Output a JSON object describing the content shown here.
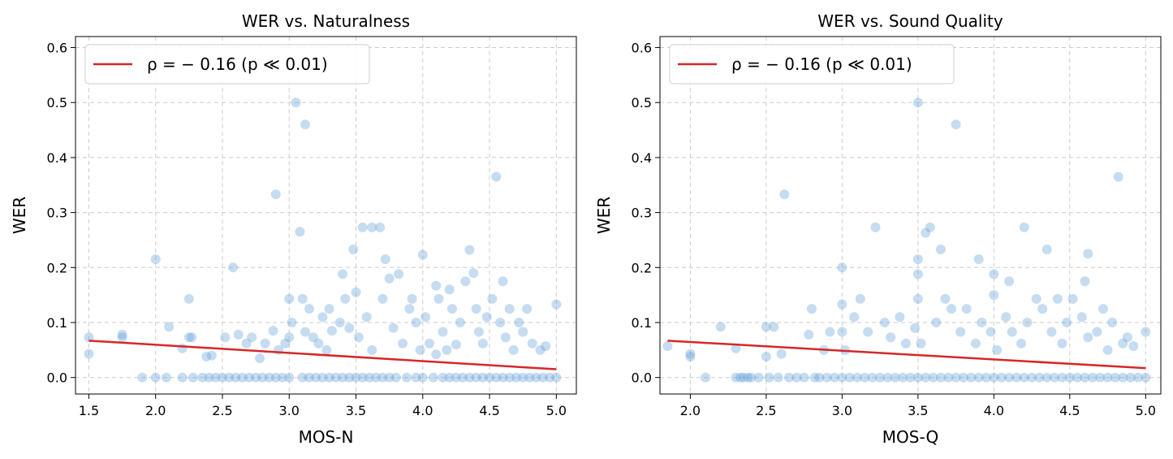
{
  "chart_data": [
    {
      "type": "scatter",
      "title": "WER vs. Naturalness",
      "xlabel": "MOS-N",
      "ylabel": "WER",
      "xlim": [
        1.4,
        5.15
      ],
      "ylim": [
        -0.03,
        0.62
      ],
      "xticks": [
        "1.5",
        "2.0",
        "2.5",
        "3.0",
        "3.5",
        "4.0",
        "4.5",
        "5.0"
      ],
      "yticks": [
        "0.0",
        "0.1",
        "0.2",
        "0.3",
        "0.4",
        "0.5",
        "0.6"
      ],
      "grid": true,
      "legend_position": "top-left",
      "point_color": "#5b9bd5",
      "line_color": "#d62728",
      "fit_line": {
        "label": "ρ = − 0.16 (p ≪ 0.01)",
        "x": [
          1.5,
          5.0
        ],
        "y": [
          0.067,
          0.015
        ]
      },
      "points": [
        [
          1.5,
          0.073
        ],
        [
          1.5,
          0.043
        ],
        [
          1.75,
          0.078
        ],
        [
          1.75,
          0.073
        ],
        [
          1.9,
          0.0
        ],
        [
          2.0,
          0.215
        ],
        [
          2.0,
          0.0
        ],
        [
          2.08,
          0.0
        ],
        [
          2.1,
          0.092
        ],
        [
          2.2,
          0.053
        ],
        [
          2.2,
          0.0
        ],
        [
          2.25,
          0.143
        ],
        [
          2.25,
          0.073
        ],
        [
          2.27,
          0.073
        ],
        [
          2.28,
          0.0
        ],
        [
          2.35,
          0.0
        ],
        [
          2.38,
          0.038
        ],
        [
          2.4,
          0.0
        ],
        [
          2.42,
          0.04
        ],
        [
          2.45,
          0.0
        ],
        [
          2.5,
          0.0
        ],
        [
          2.52,
          0.073
        ],
        [
          2.55,
          0.0
        ],
        [
          2.58,
          0.2
        ],
        [
          2.6,
          0.0
        ],
        [
          2.62,
          0.078
        ],
        [
          2.65,
          0.0
        ],
        [
          2.68,
          0.062
        ],
        [
          2.7,
          0.0
        ],
        [
          2.72,
          0.073
        ],
        [
          2.75,
          0.0
        ],
        [
          2.78,
          0.035
        ],
        [
          2.8,
          0.0
        ],
        [
          2.82,
          0.062
        ],
        [
          2.85,
          0.0
        ],
        [
          2.88,
          0.085
        ],
        [
          2.9,
          0.333
        ],
        [
          2.9,
          0.0
        ],
        [
          2.92,
          0.05
        ],
        [
          2.95,
          0.0
        ],
        [
          2.97,
          0.062
        ],
        [
          3.0,
          0.143
        ],
        [
          3.0,
          0.0
        ],
        [
          3.0,
          0.073
        ],
        [
          3.02,
          0.1
        ],
        [
          3.05,
          0.5
        ],
        [
          3.08,
          0.265
        ],
        [
          3.1,
          0.0
        ],
        [
          3.1,
          0.143
        ],
        [
          3.12,
          0.46
        ],
        [
          3.12,
          0.083
        ],
        [
          3.15,
          0.125
        ],
        [
          3.15,
          0.0
        ],
        [
          3.18,
          0.073
        ],
        [
          3.2,
          0.0
        ],
        [
          3.22,
          0.062
        ],
        [
          3.25,
          0.0
        ],
        [
          3.25,
          0.11
        ],
        [
          3.28,
          0.05
        ],
        [
          3.3,
          0.0
        ],
        [
          3.3,
          0.125
        ],
        [
          3.32,
          0.085
        ],
        [
          3.35,
          0.0
        ],
        [
          3.38,
          0.1
        ],
        [
          3.4,
          0.0
        ],
        [
          3.4,
          0.188
        ],
        [
          3.42,
          0.143
        ],
        [
          3.45,
          0.0
        ],
        [
          3.45,
          0.09
        ],
        [
          3.48,
          0.233
        ],
        [
          3.5,
          0.0
        ],
        [
          3.5,
          0.155
        ],
        [
          3.52,
          0.073
        ],
        [
          3.55,
          0.273
        ],
        [
          3.55,
          0.0
        ],
        [
          3.58,
          0.11
        ],
        [
          3.6,
          0.0
        ],
        [
          3.62,
          0.273
        ],
        [
          3.62,
          0.05
        ],
        [
          3.65,
          0.0
        ],
        [
          3.68,
          0.273
        ],
        [
          3.7,
          0.0
        ],
        [
          3.7,
          0.143
        ],
        [
          3.72,
          0.215
        ],
        [
          3.75,
          0.0
        ],
        [
          3.75,
          0.18
        ],
        [
          3.78,
          0.09
        ],
        [
          3.8,
          0.0
        ],
        [
          3.82,
          0.188
        ],
        [
          3.85,
          0.062
        ],
        [
          3.88,
          0.0
        ],
        [
          3.9,
          0.125
        ],
        [
          3.92,
          0.143
        ],
        [
          3.95,
          0.0
        ],
        [
          3.95,
          0.1
        ],
        [
          3.98,
          0.05
        ],
        [
          4.0,
          0.223
        ],
        [
          4.0,
          0.0
        ],
        [
          4.02,
          0.11
        ],
        [
          4.05,
          0.062
        ],
        [
          4.08,
          0.0
        ],
        [
          4.1,
          0.167
        ],
        [
          4.1,
          0.042
        ],
        [
          4.12,
          0.143
        ],
        [
          4.15,
          0.0
        ],
        [
          4.15,
          0.083
        ],
        [
          4.18,
          0.05
        ],
        [
          4.2,
          0.0
        ],
        [
          4.2,
          0.16
        ],
        [
          4.22,
          0.125
        ],
        [
          4.25,
          0.0
        ],
        [
          4.25,
          0.06
        ],
        [
          4.28,
          0.1
        ],
        [
          4.3,
          0.0
        ],
        [
          4.32,
          0.175
        ],
        [
          4.35,
          0.232
        ],
        [
          4.35,
          0.0
        ],
        [
          4.38,
          0.19
        ],
        [
          4.4,
          0.125
        ],
        [
          4.4,
          0.0
        ],
        [
          4.42,
          0.083
        ],
        [
          4.45,
          0.0
        ],
        [
          4.45,
          0.062
        ],
        [
          4.48,
          0.11
        ],
        [
          4.5,
          0.0
        ],
        [
          4.52,
          0.143
        ],
        [
          4.55,
          0.365
        ],
        [
          4.55,
          0.0
        ],
        [
          4.58,
          0.1
        ],
        [
          4.6,
          0.0
        ],
        [
          4.6,
          0.175
        ],
        [
          4.62,
          0.073
        ],
        [
          4.65,
          0.0
        ],
        [
          4.65,
          0.125
        ],
        [
          4.68,
          0.05
        ],
        [
          4.7,
          0.0
        ],
        [
          4.72,
          0.1
        ],
        [
          4.75,
          0.0
        ],
        [
          4.75,
          0.083
        ],
        [
          4.78,
          0.125
        ],
        [
          4.8,
          0.0
        ],
        [
          4.82,
          0.062
        ],
        [
          4.85,
          0.0
        ],
        [
          4.88,
          0.05
        ],
        [
          4.9,
          0.0
        ],
        [
          4.92,
          0.057
        ],
        [
          4.95,
          0.0
        ],
        [
          5.0,
          0.133
        ],
        [
          5.0,
          0.0
        ]
      ]
    },
    {
      "type": "scatter",
      "title": "WER vs. Sound Quality",
      "xlabel": "MOS-Q",
      "ylabel": "WER",
      "xlim": [
        1.8,
        5.1
      ],
      "ylim": [
        -0.03,
        0.62
      ],
      "xticks": [
        "2.0",
        "2.5",
        "3.0",
        "3.5",
        "4.0",
        "4.5",
        "5.0"
      ],
      "yticks": [
        "0.0",
        "0.1",
        "0.2",
        "0.3",
        "0.4",
        "0.5",
        "0.6"
      ],
      "grid": true,
      "legend_position": "top-left",
      "point_color": "#5b9bd5",
      "line_color": "#d62728",
      "fit_line": {
        "label": "ρ = − 0.16 (p ≪ 0.01)",
        "x": [
          1.85,
          5.0
        ],
        "y": [
          0.067,
          0.017
        ]
      },
      "points": [
        [
          1.85,
          0.057
        ],
        [
          2.0,
          0.043
        ],
        [
          2.0,
          0.038
        ],
        [
          2.1,
          0.0
        ],
        [
          2.2,
          0.092
        ],
        [
          2.3,
          0.053
        ],
        [
          2.3,
          0.0
        ],
        [
          2.33,
          0.0
        ],
        [
          2.35,
          0.0
        ],
        [
          2.38,
          0.0
        ],
        [
          2.4,
          0.0
        ],
        [
          2.45,
          0.0
        ],
        [
          2.5,
          0.038
        ],
        [
          2.5,
          0.092
        ],
        [
          2.52,
          0.0
        ],
        [
          2.55,
          0.092
        ],
        [
          2.58,
          0.0
        ],
        [
          2.6,
          0.043
        ],
        [
          2.62,
          0.333
        ],
        [
          2.65,
          0.0
        ],
        [
          2.7,
          0.0
        ],
        [
          2.75,
          0.0
        ],
        [
          2.78,
          0.078
        ],
        [
          2.8,
          0.125
        ],
        [
          2.82,
          0.0
        ],
        [
          2.85,
          0.0
        ],
        [
          2.88,
          0.05
        ],
        [
          2.9,
          0.0
        ],
        [
          2.92,
          0.083
        ],
        [
          2.95,
          0.0
        ],
        [
          3.0,
          0.2
        ],
        [
          3.0,
          0.133
        ],
        [
          3.0,
          0.0
        ],
        [
          3.0,
          0.083
        ],
        [
          3.02,
          0.05
        ],
        [
          3.05,
          0.0
        ],
        [
          3.08,
          0.11
        ],
        [
          3.1,
          0.0
        ],
        [
          3.12,
          0.143
        ],
        [
          3.15,
          0.0
        ],
        [
          3.17,
          0.083
        ],
        [
          3.2,
          0.0
        ],
        [
          3.22,
          0.273
        ],
        [
          3.25,
          0.0
        ],
        [
          3.28,
          0.1
        ],
        [
          3.3,
          0.0
        ],
        [
          3.32,
          0.073
        ],
        [
          3.35,
          0.0
        ],
        [
          3.38,
          0.11
        ],
        [
          3.4,
          0.0
        ],
        [
          3.42,
          0.062
        ],
        [
          3.45,
          0.0
        ],
        [
          3.48,
          0.09
        ],
        [
          3.5,
          0.5
        ],
        [
          3.5,
          0.215
        ],
        [
          3.5,
          0.188
        ],
        [
          3.5,
          0.143
        ],
        [
          3.5,
          0.0
        ],
        [
          3.52,
          0.062
        ],
        [
          3.55,
          0.263
        ],
        [
          3.55,
          0.0
        ],
        [
          3.58,
          0.273
        ],
        [
          3.6,
          0.0
        ],
        [
          3.62,
          0.1
        ],
        [
          3.65,
          0.233
        ],
        [
          3.65,
          0.0
        ],
        [
          3.68,
          0.143
        ],
        [
          3.7,
          0.0
        ],
        [
          3.72,
          0.125
        ],
        [
          3.75,
          0.46
        ],
        [
          3.75,
          0.0
        ],
        [
          3.78,
          0.083
        ],
        [
          3.8,
          0.0
        ],
        [
          3.82,
          0.125
        ],
        [
          3.85,
          0.0
        ],
        [
          3.88,
          0.062
        ],
        [
          3.9,
          0.215
        ],
        [
          3.9,
          0.0
        ],
        [
          3.92,
          0.1
        ],
        [
          3.95,
          0.0
        ],
        [
          3.98,
          0.083
        ],
        [
          4.0,
          0.188
        ],
        [
          4.0,
          0.15
        ],
        [
          4.0,
          0.0
        ],
        [
          4.02,
          0.05
        ],
        [
          4.05,
          0.0
        ],
        [
          4.08,
          0.11
        ],
        [
          4.1,
          0.175
        ],
        [
          4.1,
          0.0
        ],
        [
          4.12,
          0.083
        ],
        [
          4.15,
          0.0
        ],
        [
          4.18,
          0.062
        ],
        [
          4.2,
          0.273
        ],
        [
          4.2,
          0.0
        ],
        [
          4.22,
          0.1
        ],
        [
          4.25,
          0.0
        ],
        [
          4.28,
          0.143
        ],
        [
          4.3,
          0.0
        ],
        [
          4.32,
          0.125
        ],
        [
          4.35,
          0.233
        ],
        [
          4.35,
          0.0
        ],
        [
          4.38,
          0.083
        ],
        [
          4.4,
          0.0
        ],
        [
          4.42,
          0.143
        ],
        [
          4.45,
          0.0
        ],
        [
          4.45,
          0.062
        ],
        [
          4.48,
          0.1
        ],
        [
          4.5,
          0.0
        ],
        [
          4.52,
          0.143
        ],
        [
          4.55,
          0.0
        ],
        [
          4.58,
          0.11
        ],
        [
          4.6,
          0.175
        ],
        [
          4.6,
          0.0
        ],
        [
          4.62,
          0.225
        ],
        [
          4.62,
          0.073
        ],
        [
          4.65,
          0.0
        ],
        [
          4.68,
          0.083
        ],
        [
          4.7,
          0.0
        ],
        [
          4.72,
          0.125
        ],
        [
          4.75,
          0.0
        ],
        [
          4.75,
          0.05
        ],
        [
          4.78,
          0.1
        ],
        [
          4.8,
          0.0
        ],
        [
          4.82,
          0.365
        ],
        [
          4.85,
          0.0
        ],
        [
          4.85,
          0.062
        ],
        [
          4.88,
          0.073
        ],
        [
          4.9,
          0.0
        ],
        [
          4.92,
          0.057
        ],
        [
          4.95,
          0.0
        ],
        [
          5.0,
          0.083
        ],
        [
          5.0,
          0.0
        ]
      ]
    }
  ]
}
